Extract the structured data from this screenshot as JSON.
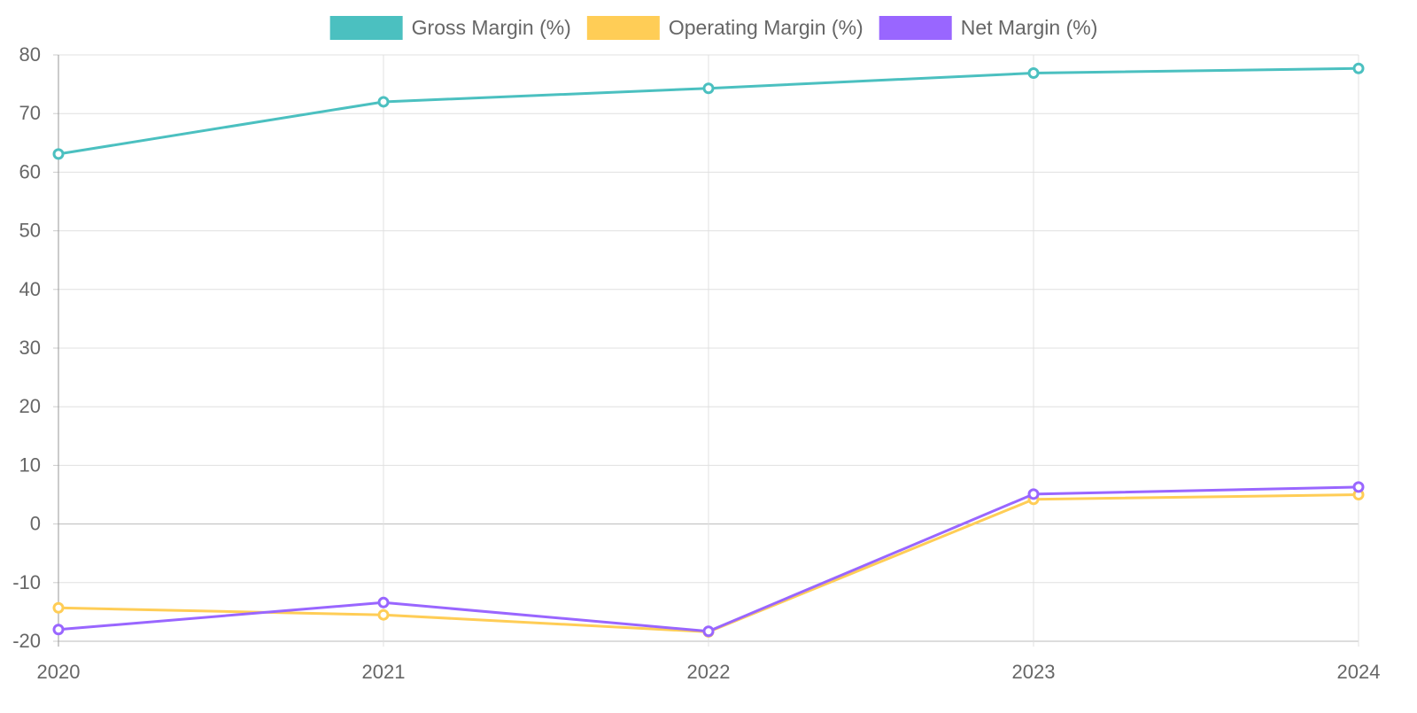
{
  "chart_data": {
    "type": "line",
    "title": "",
    "xlabel": "",
    "ylabel": "",
    "categories": [
      "2020",
      "2021",
      "2022",
      "2023",
      "2024"
    ],
    "ylim": [
      -20,
      80
    ],
    "yticks": [
      80,
      70,
      60,
      50,
      40,
      30,
      20,
      10,
      0,
      -10,
      -20
    ],
    "grid": true,
    "legend_position": "top-center",
    "series": [
      {
        "name": "Gross Margin (%)",
        "color": "#4BC0C0",
        "values": [
          63.1,
          72.0,
          74.3,
          76.9,
          77.7
        ]
      },
      {
        "name": "Operating Margin (%)",
        "color": "#FFCD56",
        "values": [
          -14.3,
          -15.5,
          -18.4,
          4.2,
          5.0
        ]
      },
      {
        "name": "Net Margin (%)",
        "color": "#9966FF",
        "values": [
          -18.0,
          -13.4,
          -18.3,
          5.1,
          6.3
        ]
      }
    ]
  }
}
